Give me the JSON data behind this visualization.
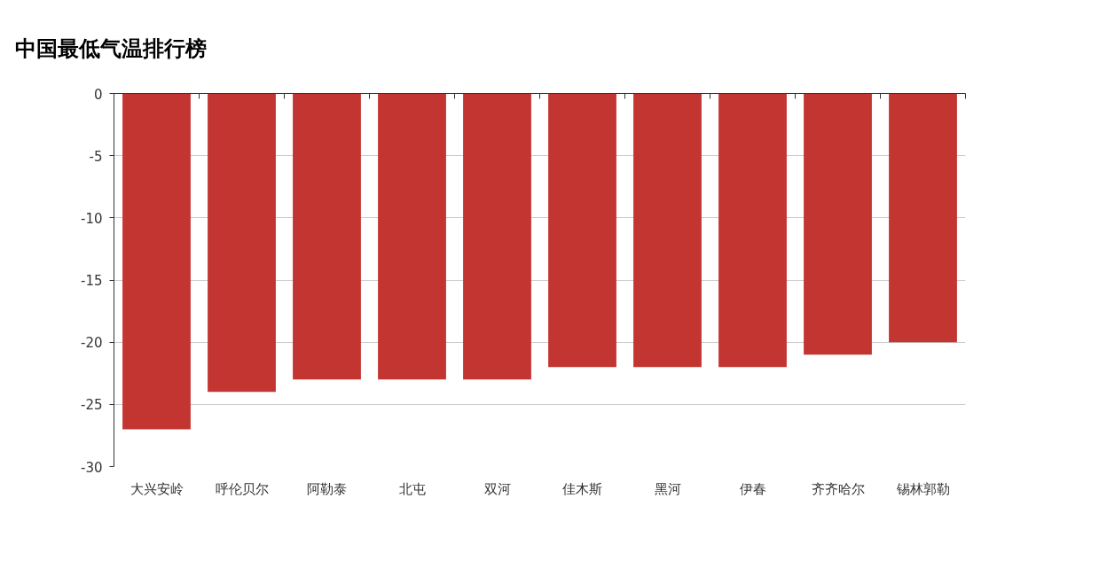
{
  "chart_data": {
    "type": "bar",
    "title": "中国最低气温排行榜",
    "categories": [
      "大兴安岭",
      "呼伦贝尔",
      "阿勒泰",
      "北屯",
      "双河",
      "佳木斯",
      "黑河",
      "伊春",
      "齐齐哈尔",
      "锡林郭勒"
    ],
    "values": [
      -27,
      -24,
      -23,
      -23,
      -23,
      -22,
      -22,
      -22,
      -21,
      -20
    ],
    "color": "#c23531",
    "ylim": [
      -30,
      0
    ],
    "yticks": [
      -30,
      -25,
      -20,
      -15,
      -10,
      -5,
      0
    ],
    "grid": "y"
  }
}
